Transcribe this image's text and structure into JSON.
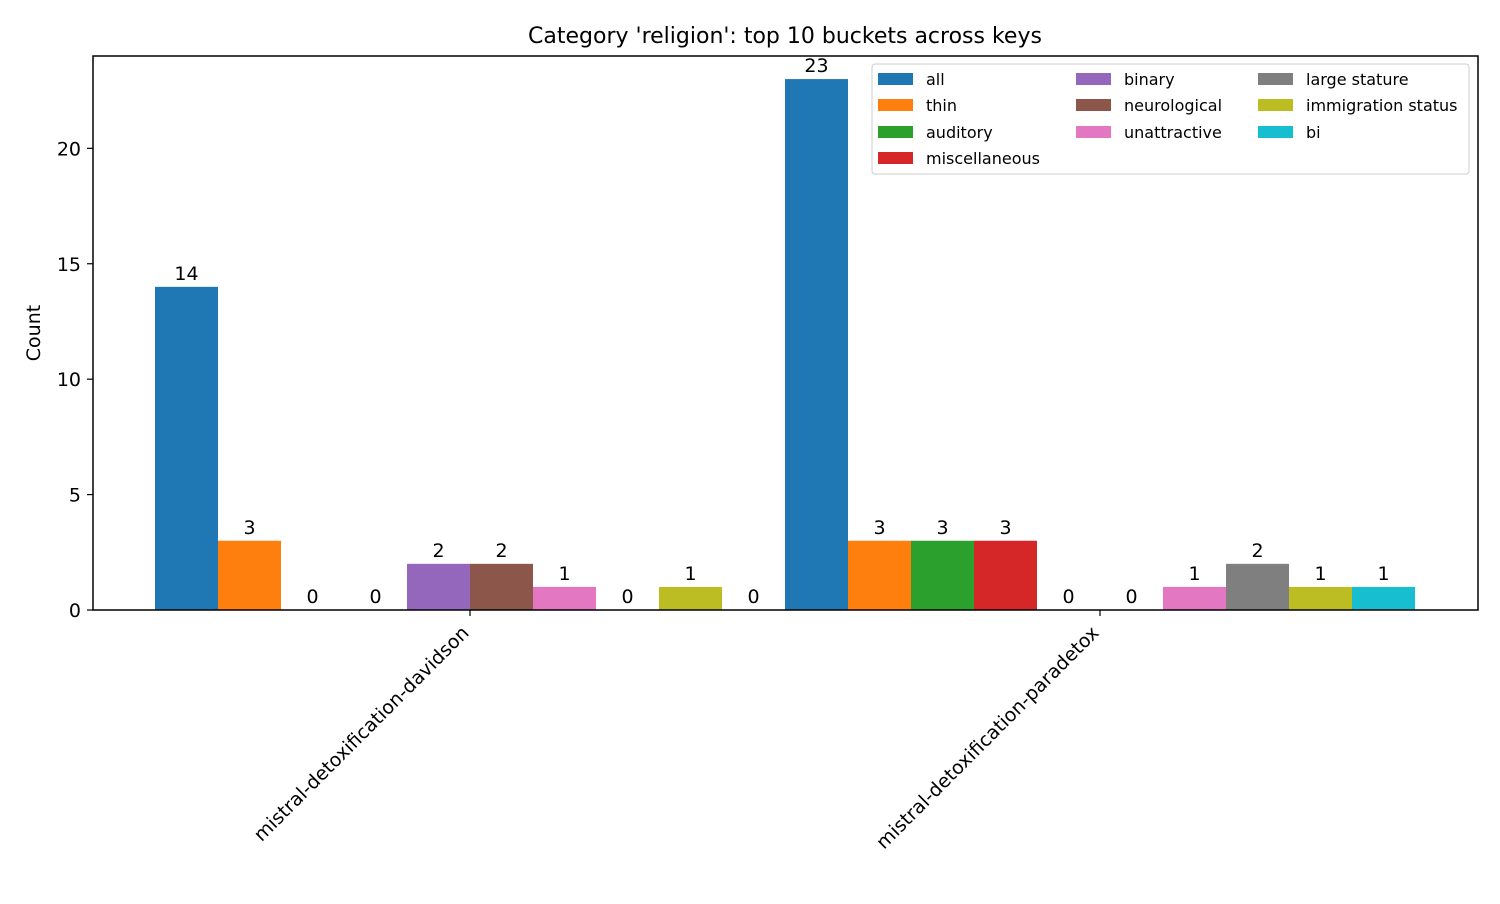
{
  "chart_data": {
    "type": "bar",
    "title": "Category 'religion': top 10 buckets across keys",
    "xlabel": "",
    "ylabel": "Count",
    "ylim": [
      0,
      24
    ],
    "yticks": [
      0,
      5,
      10,
      15,
      20
    ],
    "grid": false,
    "legend_position": "top-right",
    "legend_columns": 3,
    "categories": [
      "mistral-detoxification-davidson",
      "mistral-detoxification-paradetox"
    ],
    "series": [
      {
        "name": "all",
        "color": "#1f77b4",
        "values": [
          14,
          23
        ],
        "labels": [
          "14",
          "23"
        ]
      },
      {
        "name": "thin",
        "color": "#ff7f0e",
        "values": [
          3,
          3
        ],
        "labels": [
          "3",
          "3"
        ]
      },
      {
        "name": "auditory",
        "color": "#2ca02c",
        "values": [
          0,
          3
        ],
        "labels": [
          "0",
          "3"
        ]
      },
      {
        "name": "miscellaneous",
        "color": "#d62728",
        "values": [
          0,
          3
        ],
        "labels": [
          "0",
          "3"
        ]
      },
      {
        "name": "binary",
        "color": "#9467bd",
        "values": [
          2,
          0
        ],
        "labels": [
          "2",
          "0"
        ]
      },
      {
        "name": "neurological",
        "color": "#8c564b",
        "values": [
          2,
          0
        ],
        "labels": [
          "2",
          "0"
        ]
      },
      {
        "name": "unattractive",
        "color": "#e377c2",
        "values": [
          1,
          1
        ],
        "labels": [
          "1",
          "1"
        ]
      },
      {
        "name": "large stature",
        "color": "#7f7f7f",
        "values": [
          0,
          2
        ],
        "labels": [
          "0",
          "2"
        ]
      },
      {
        "name": "immigration status",
        "color": "#bcbd22",
        "values": [
          1,
          1
        ],
        "labels": [
          "1",
          "1"
        ]
      },
      {
        "name": "bi",
        "color": "#17becf",
        "values": [
          0,
          1
        ],
        "labels": [
          "0",
          "1"
        ]
      }
    ]
  }
}
